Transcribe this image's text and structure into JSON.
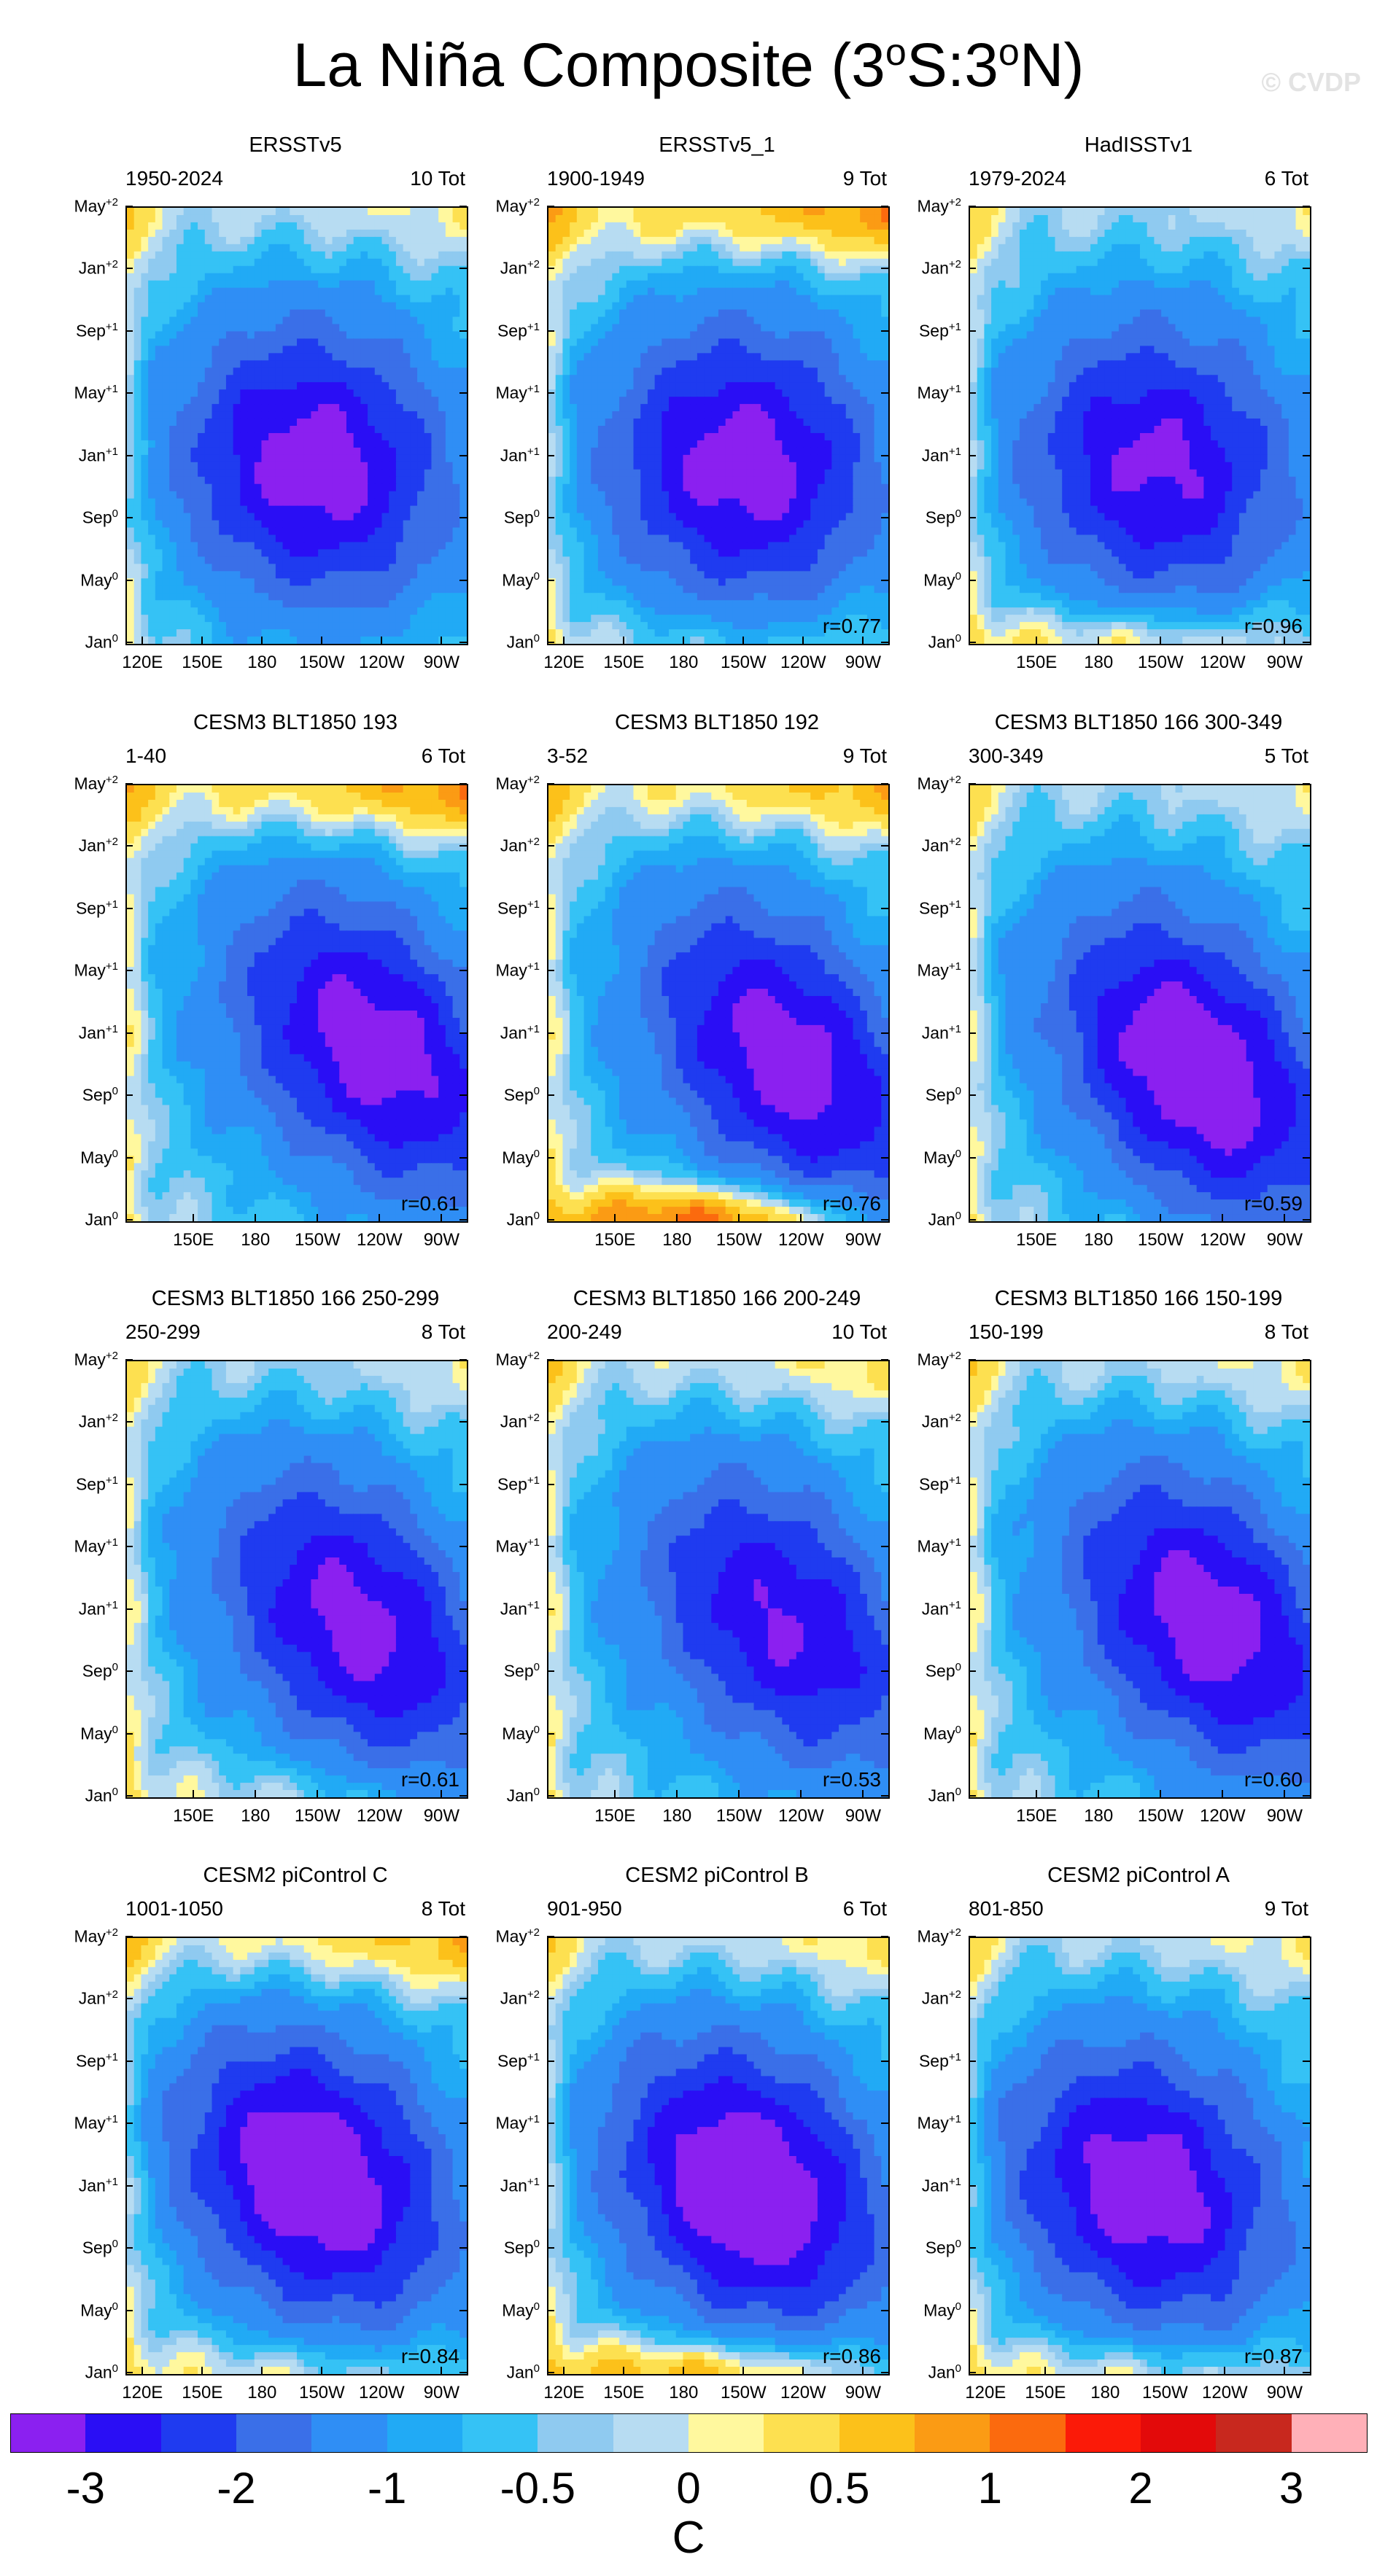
{
  "title": {
    "text": "La Niña Composite (3",
    "sup1": "o",
    "mid": "S:3",
    "sup2": "o",
    "end": "N)"
  },
  "watermark": "© CVDP",
  "colors": {
    "levels": [
      "#8b20f0",
      "#2a0ef5",
      "#1f3bf0",
      "#3a6fe8",
      "#2f8ef5",
      "#21aaf5",
      "#35c2f5",
      "#8fcaf0",
      "#b7dcf2",
      "#fff89e",
      "#fde050",
      "#fcc11a",
      "#fb9b14",
      "#fb6a0e",
      "#fb1a08",
      "#e30a0a",
      "#c8281e",
      "#ffb0b8"
    ]
  },
  "chart_data": [
    {
      "type": "heatmap",
      "title": "ERSSTv5",
      "period": "1950-2024",
      "count": "10 Tot",
      "corr": "",
      "xticks": [
        "120E",
        "150E",
        "180",
        "150W",
        "120W",
        "90W"
      ],
      "yticks": [
        "May",
        "Jan",
        "Sep",
        "May",
        "Jan",
        "Sep",
        "May",
        "Jan"
      ],
      "ysup": [
        "+2",
        "+2",
        "+1",
        "+1",
        "+1",
        "0",
        "0",
        "0"
      ],
      "pattern": {
        "core": -2.2,
        "cx": 0.55,
        "cy": 0.6,
        "warm_top": 0.3,
        "warm_bottom": 0.0,
        "tilt": 0.1
      }
    },
    {
      "type": "heatmap",
      "title": "ERSSTv5_1",
      "period": "1900-1949",
      "count": "9 Tot",
      "corr": "r=0.77",
      "xticks": [
        "120E",
        "150E",
        "180",
        "150W",
        "120W",
        "90W"
      ],
      "yticks": [
        "May",
        "Jan",
        "Sep",
        "May",
        "Jan",
        "Sep",
        "May",
        "Jan"
      ],
      "ysup": [
        "+2",
        "+2",
        "+1",
        "+1",
        "+1",
        "0",
        "0",
        "0"
      ],
      "pattern": {
        "core": -2.2,
        "cx": 0.58,
        "cy": 0.6,
        "warm_top": 0.9,
        "warm_bottom": 0.3,
        "tilt": 0.05
      }
    },
    {
      "type": "heatmap",
      "title": "HadISSTv1",
      "period": "1979-2024",
      "count": "6 Tot",
      "corr": "r=0.96",
      "xticks": [
        "150E",
        "180",
        "150W",
        "120W",
        "90W"
      ],
      "yticks": [
        "May",
        "Jan",
        "Sep",
        "May",
        "Jan",
        "Sep",
        "May",
        "Jan"
      ],
      "ysup": [
        "+2",
        "+2",
        "+1",
        "+1",
        "+1",
        "0",
        "0",
        "0"
      ],
      "pattern": {
        "core": -2.0,
        "cx": 0.55,
        "cy": 0.6,
        "warm_top": 0.2,
        "warm_bottom": 0.7,
        "tilt": 0.1
      }
    },
    {
      "type": "heatmap",
      "title": "CESM3 BLT1850 193",
      "period": "1-40",
      "count": "6 Tot",
      "corr": "r=0.61",
      "xticks": [
        "150E",
        "180",
        "150W",
        "120W",
        "90W"
      ],
      "yticks": [
        "May",
        "Jan",
        "Sep",
        "May",
        "Jan",
        "Sep",
        "May",
        "Jan"
      ],
      "ysup": [
        "+2",
        "+2",
        "+1",
        "+1",
        "+1",
        "0",
        "0",
        "0"
      ],
      "pattern": {
        "core": -2.4,
        "cx": 0.78,
        "cy": 0.63,
        "warm_top": 0.9,
        "warm_bottom": 0.0,
        "tilt": 0.4
      }
    },
    {
      "type": "heatmap",
      "title": "CESM3 BLT1850 192",
      "period": "3-52",
      "count": "9 Tot",
      "corr": "r=0.76",
      "xticks": [
        "150E",
        "180",
        "150W",
        "120W",
        "90W"
      ],
      "yticks": [
        "May",
        "Jan",
        "Sep",
        "May",
        "Jan",
        "Sep",
        "May",
        "Jan"
      ],
      "ysup": [
        "+2",
        "+2",
        "+1",
        "+1",
        "+1",
        "0",
        "0",
        "0"
      ],
      "pattern": {
        "core": -2.4,
        "cx": 0.76,
        "cy": 0.67,
        "warm_top": 0.7,
        "warm_bottom": 1.3,
        "tilt": 0.45
      }
    },
    {
      "type": "heatmap",
      "title": "CESM3 BLT1850 166 300-349",
      "period": "300-349",
      "count": "5 Tot",
      "corr": "r=0.59",
      "xticks": [
        "150E",
        "180",
        "150W",
        "120W",
        "90W"
      ],
      "yticks": [
        "May",
        "Jan",
        "Sep",
        "May",
        "Jan",
        "Sep",
        "May",
        "Jan"
      ],
      "ysup": [
        "+2",
        "+2",
        "+1",
        "+1",
        "+1",
        "0",
        "0",
        "0"
      ],
      "pattern": {
        "core": -2.6,
        "cx": 0.7,
        "cy": 0.68,
        "warm_top": 0.2,
        "warm_bottom": 0.0,
        "tilt": 0.4
      }
    },
    {
      "type": "heatmap",
      "title": "CESM3 BLT1850 166 250-299",
      "period": "250-299",
      "count": "8 Tot",
      "corr": "r=0.61",
      "xticks": [
        "150E",
        "180",
        "150W",
        "120W",
        "90W"
      ],
      "yticks": [
        "May",
        "Jan",
        "Sep",
        "May",
        "Jan",
        "Sep",
        "May",
        "Jan"
      ],
      "ysup": [
        "+2",
        "+2",
        "+1",
        "+1",
        "+1",
        "0",
        "0",
        "0"
      ],
      "pattern": {
        "core": -2.2,
        "cx": 0.72,
        "cy": 0.63,
        "warm_top": 0.2,
        "warm_bottom": 0.3,
        "tilt": 0.4
      }
    },
    {
      "type": "heatmap",
      "title": "CESM3 BLT1850 166 200-249",
      "period": "200-249",
      "count": "10 Tot",
      "corr": "r=0.53",
      "xticks": [
        "150E",
        "180",
        "150W",
        "120W",
        "90W"
      ],
      "yticks": [
        "May",
        "Jan",
        "Sep",
        "May",
        "Jan",
        "Sep",
        "May",
        "Jan"
      ],
      "ysup": [
        "+2",
        "+2",
        "+1",
        "+1",
        "+1",
        "0",
        "0",
        "0"
      ],
      "pattern": {
        "core": -2.0,
        "cx": 0.74,
        "cy": 0.63,
        "warm_top": 0.4,
        "warm_bottom": 0.0,
        "tilt": 0.4
      }
    },
    {
      "type": "heatmap",
      "title": "CESM3 BLT1850 166 150-199",
      "period": "150-199",
      "count": "8 Tot",
      "corr": "r=0.60",
      "xticks": [
        "150E",
        "180",
        "150W",
        "120W",
        "90W"
      ],
      "yticks": [
        "May",
        "Jan",
        "Sep",
        "May",
        "Jan",
        "Sep",
        "May",
        "Jan"
      ],
      "ysup": [
        "+2",
        "+2",
        "+1",
        "+1",
        "+1",
        "0",
        "0",
        "0"
      ],
      "pattern": {
        "core": -2.4,
        "cx": 0.75,
        "cy": 0.63,
        "warm_top": 0.3,
        "warm_bottom": 0.0,
        "tilt": 0.4
      }
    },
    {
      "type": "heatmap",
      "title": "CESM2 piControl C",
      "period": "1001-1050",
      "count": "8 Tot",
      "corr": "r=0.84",
      "xticks": [
        "120E",
        "150E",
        "180",
        "150W",
        "120W",
        "90W"
      ],
      "yticks": [
        "May",
        "Jan",
        "Sep",
        "May",
        "Jan",
        "Sep",
        "May",
        "Jan"
      ],
      "ysup": [
        "+2",
        "+2",
        "+1",
        "+1",
        "+1",
        "0",
        "0",
        "0"
      ],
      "pattern": {
        "core": -2.5,
        "cx": 0.55,
        "cy": 0.55,
        "warm_top": 0.7,
        "warm_bottom": 0.5,
        "tilt": 0.25
      }
    },
    {
      "type": "heatmap",
      "title": "CESM2 piControl B",
      "period": "901-950",
      "count": "6 Tot",
      "corr": "r=0.86",
      "xticks": [
        "120E",
        "150E",
        "180",
        "150W",
        "120W",
        "90W"
      ],
      "yticks": [
        "May",
        "Jan",
        "Sep",
        "May",
        "Jan",
        "Sep",
        "May",
        "Jan"
      ],
      "ysup": [
        "+2",
        "+2",
        "+1",
        "+1",
        "+1",
        "0",
        "0",
        "0"
      ],
      "pattern": {
        "core": -2.6,
        "cx": 0.6,
        "cy": 0.58,
        "warm_top": 0.4,
        "warm_bottom": 1.0,
        "tilt": 0.25
      }
    },
    {
      "type": "heatmap",
      "title": "CESM2 piControl A",
      "period": "801-850",
      "count": "9 Tot",
      "corr": "r=0.87",
      "xticks": [
        "120E",
        "150E",
        "180",
        "150W",
        "120W",
        "90W"
      ],
      "yticks": [
        "May",
        "Jan",
        "Sep",
        "May",
        "Jan",
        "Sep",
        "May",
        "Jan"
      ],
      "ysup": [
        "+2",
        "+2",
        "+1",
        "+1",
        "+1",
        "0",
        "0",
        "0"
      ],
      "pattern": {
        "core": -2.3,
        "cx": 0.5,
        "cy": 0.58,
        "warm_top": 0.3,
        "warm_bottom": 0.6,
        "tilt": 0.2
      }
    }
  ],
  "colorbar": {
    "labels": [
      "-3",
      "-2",
      "-1",
      "-0.5",
      "0",
      "0.5",
      "1",
      "2",
      "3"
    ],
    "unit": "C"
  }
}
